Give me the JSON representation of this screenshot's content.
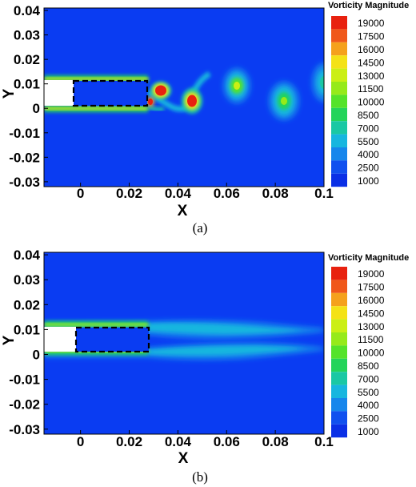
{
  "chart_data": [
    {
      "type": "heatmap",
      "panel": "(a)",
      "xlabel": "X",
      "ylabel": "Y",
      "xlim": [
        -0.015,
        0.1
      ],
      "ylim": [
        -0.032,
        0.041
      ],
      "x_ticks": [
        "0",
        "0.02",
        "0.04",
        "0.06",
        "0.08",
        "0.1"
      ],
      "y_ticks": [
        "0.04",
        "0.03",
        "0.02",
        "0.01",
        "0",
        "-0.01",
        "-0.02",
        "-0.03"
      ],
      "legend_title": "Vorticity Magnitude",
      "legend_levels": [
        19000,
        17500,
        16000,
        14500,
        13000,
        11500,
        10000,
        8500,
        7000,
        5500,
        4000,
        2500,
        1000
      ],
      "legend_placement": "right",
      "body": {
        "x": [
          0,
          0.03
        ],
        "y": [
          0,
          0.01
        ]
      },
      "vortices": [
        {
          "x": 0.036,
          "y": 0.0065,
          "level": 19000
        },
        {
          "x": 0.048,
          "y": 0.002,
          "level": 19000
        },
        {
          "x": 0.067,
          "y": 0.008,
          "level": 11000
        },
        {
          "x": 0.086,
          "y": 0.002,
          "level": 10000
        },
        {
          "x": 0.101,
          "y": 0.008,
          "level": 6000
        }
      ],
      "caption": "(a)"
    },
    {
      "type": "heatmap",
      "panel": "(b)",
      "xlabel": "X",
      "ylabel": "Y",
      "xlim": [
        -0.015,
        0.1
      ],
      "ylim": [
        -0.032,
        0.041
      ],
      "x_ticks": [
        "0",
        "0.02",
        "0.04",
        "0.06",
        "0.08",
        "0.1"
      ],
      "y_ticks": [
        "0.04",
        "0.03",
        "0.02",
        "0.01",
        "0",
        "-0.01",
        "-0.02",
        "-0.03"
      ],
      "legend_title": "Vorticity Magnitude",
      "legend_levels": [
        19000,
        17500,
        16000,
        14500,
        13000,
        11500,
        10000,
        8500,
        7000,
        5500,
        4000,
        2500,
        1000
      ],
      "legend_placement": "right",
      "body": {
        "x": [
          0,
          0.03
        ],
        "y": [
          0,
          0.01
        ]
      },
      "shear_layers": [
        {
          "y": 0.01,
          "level": 5500
        },
        {
          "y": 0.0,
          "level": 5500
        }
      ],
      "caption": "(b)"
    }
  ],
  "colors": {
    "background": "#0a3cf2",
    "legend_scale": [
      "#e8210f",
      "#f0581a",
      "#f5a11c",
      "#f4e216",
      "#cbef14",
      "#96ea1a",
      "#54e32a",
      "#23d45a",
      "#1ac8a4",
      "#17b6df",
      "#1686ec",
      "#1050ef",
      "#0a2fe6"
    ],
    "body_fill": "#ffffff"
  }
}
